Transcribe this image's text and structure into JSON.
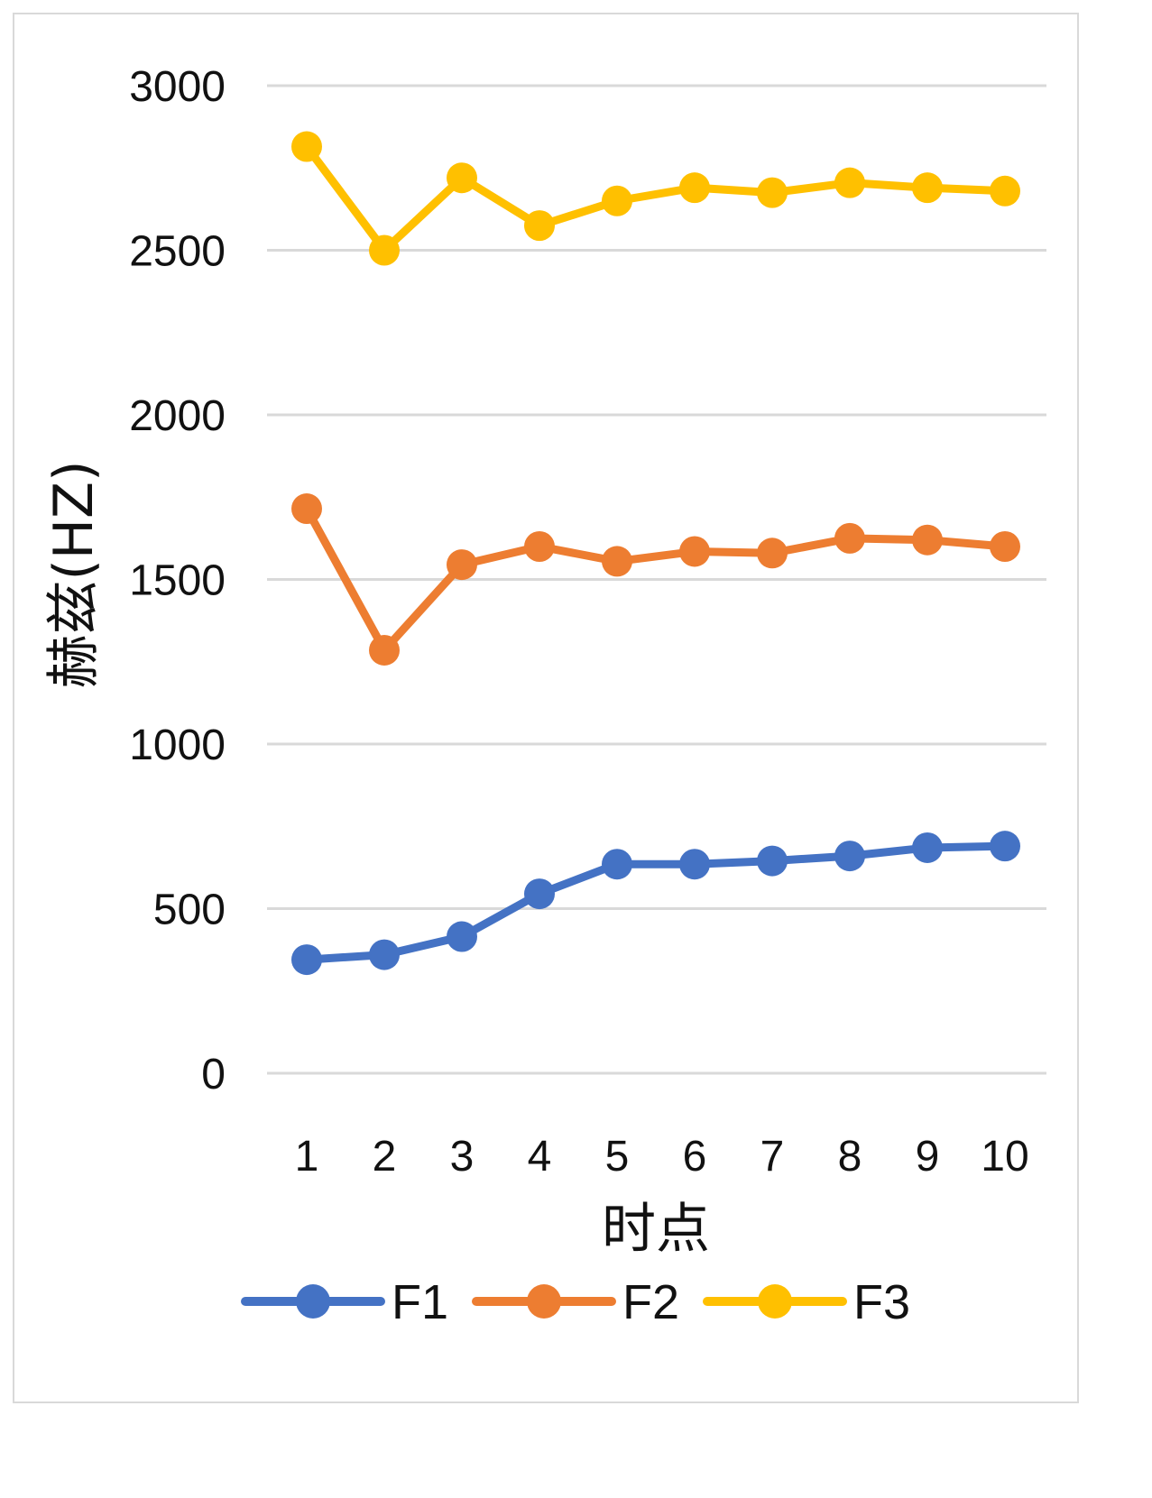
{
  "chart_data": {
    "type": "line",
    "title": "",
    "xlabel": "时点",
    "ylabel": "赫兹(HZ)",
    "categories": [
      "1",
      "2",
      "3",
      "4",
      "5",
      "6",
      "7",
      "8",
      "9",
      "10"
    ],
    "y_ticks": [
      "0",
      "500",
      "1000",
      "1500",
      "2000",
      "2500",
      "3000"
    ],
    "ylim": [
      0,
      3000
    ],
    "grid": true,
    "legend_position": "bottom",
    "series": [
      {
        "name": "F1",
        "color": "#4472c4",
        "values": [
          345,
          360,
          415,
          545,
          635,
          635,
          645,
          660,
          685,
          690
        ]
      },
      {
        "name": "F2",
        "color": "#ed7d31",
        "values": [
          1715,
          1285,
          1545,
          1600,
          1555,
          1585,
          1580,
          1625,
          1620,
          1600
        ]
      },
      {
        "name": "F3",
        "color": "#ffc000",
        "values": [
          2815,
          2500,
          2720,
          2575,
          2650,
          2690,
          2675,
          2705,
          2690,
          2680
        ]
      }
    ]
  }
}
